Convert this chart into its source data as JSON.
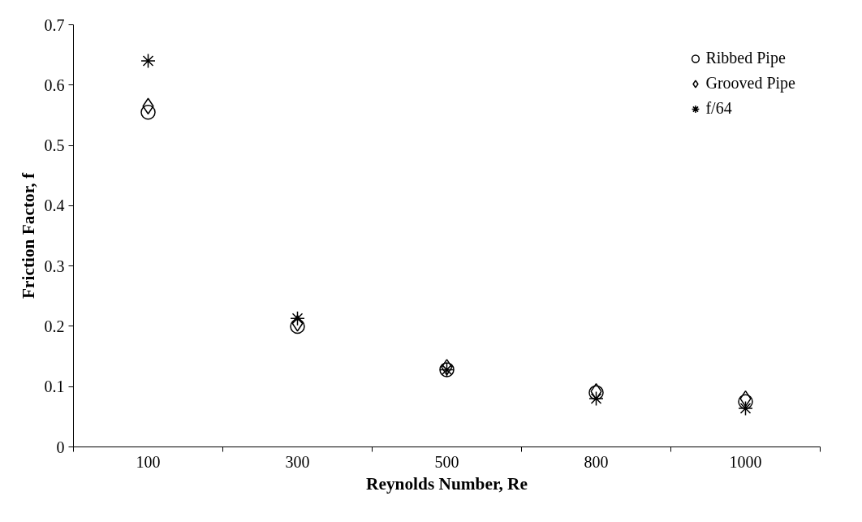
{
  "chart_data": {
    "type": "scatter",
    "xlabel": "Reynolds Number, Re",
    "ylabel": "Friction Factor, f",
    "categories": [
      "100",
      "300",
      "500",
      "800",
      "1000"
    ],
    "ylim": [
      0,
      0.7
    ],
    "yticks": [
      {
        "value": 0,
        "label": "0"
      },
      0.1,
      0.2,
      0.3,
      0.4,
      0.5,
      0.6,
      0.7
    ],
    "grid": false,
    "legend": "top right",
    "series": [
      {
        "name": "Ribbed Pipe",
        "color": "#000000",
        "marker": "circle",
        "values": [
          0.555,
          0.2,
          0.128,
          0.09,
          0.075
        ]
      },
      {
        "name": "Grooved Pipe",
        "color": "#000000",
        "marker": "diamond",
        "values": [
          0.565,
          0.205,
          0.132,
          0.092,
          0.08
        ]
      },
      {
        "name": "f/64",
        "color": "#000000",
        "marker": "cross",
        "values": [
          0.64,
          0.213,
          0.128,
          0.08,
          0.064
        ]
      }
    ]
  }
}
